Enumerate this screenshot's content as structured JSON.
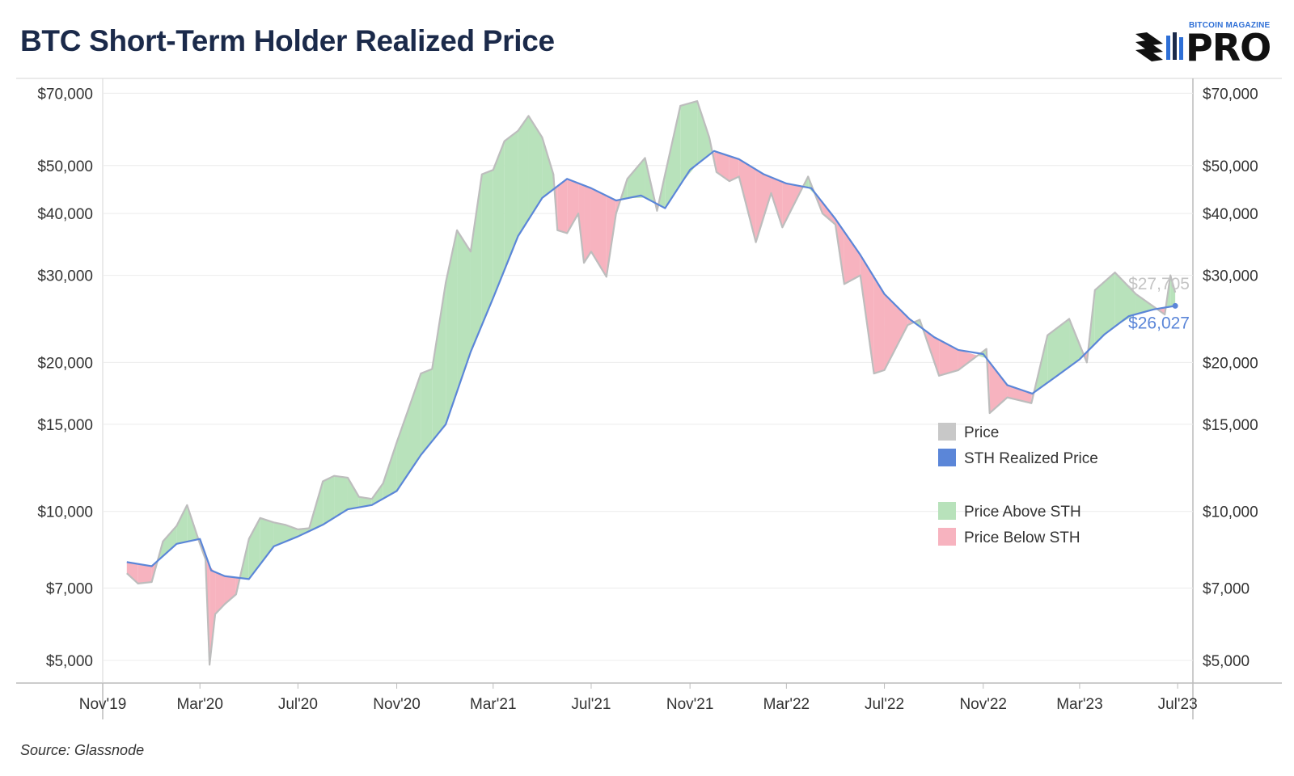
{
  "header": {
    "title": "BTC Short-Term Holder Realized Price",
    "logo_small": "BITCOIN MAGAZINE",
    "logo_big": "PRO"
  },
  "footer": {
    "source": "Source: Glassnode"
  },
  "colors": {
    "price": "#c8c8c8",
    "sth": "#5b86d8",
    "above": "#b8e2bb",
    "below": "#f7b3bf",
    "title": "#1b2a4a"
  },
  "chart_data": {
    "type": "area",
    "title": "BTC Short-Term Holder Realized Price",
    "y_scale": "log",
    "ylim": [
      4500,
      75000
    ],
    "xlim": [
      "2019-11-01",
      "2023-07-20"
    ],
    "y_ticks": [
      5000,
      7000,
      10000,
      15000,
      20000,
      30000,
      40000,
      50000,
      70000
    ],
    "y_tick_labels": [
      "$5,000",
      "$7,000",
      "$10,000",
      "$15,000",
      "$20,000",
      "$30,000",
      "$40,000",
      "$50,000",
      "$70,000"
    ],
    "x_ticks": [
      "2019-11-01",
      "2020-03-01",
      "2020-07-01",
      "2020-11-01",
      "2021-03-01",
      "2021-07-01",
      "2021-11-01",
      "2022-03-01",
      "2022-07-01",
      "2022-11-01",
      "2023-03-01",
      "2023-07-01"
    ],
    "x_tick_labels": [
      "Nov'19",
      "Mar'20",
      "Jul'20",
      "Nov'20",
      "Mar'21",
      "Jul'21",
      "Nov'21",
      "Mar'22",
      "Jul'22",
      "Nov'22",
      "Mar'23",
      "Jul'23"
    ],
    "legend": {
      "placement": "right",
      "items": [
        {
          "label": "Price",
          "color": "#c8c8c8"
        },
        {
          "label": "STH Realized Price",
          "color": "#5b86d8"
        },
        {
          "label": "Price Above STH",
          "color": "#b8e2bb"
        },
        {
          "label": "Price Below STH",
          "color": "#f7b3bf"
        }
      ]
    },
    "end_labels": {
      "price": "$27,705",
      "sth": "$26,027"
    },
    "series": [
      {
        "name": "Price",
        "points": [
          [
            "2019-12-01",
            7500
          ],
          [
            "2019-12-15",
            7150
          ],
          [
            "2020-01-01",
            7200
          ],
          [
            "2020-01-15",
            8700
          ],
          [
            "2020-02-01",
            9350
          ],
          [
            "2020-02-14",
            10300
          ],
          [
            "2020-03-01",
            8600
          ],
          [
            "2020-03-08",
            8000
          ],
          [
            "2020-03-13",
            4900
          ],
          [
            "2020-03-20",
            6200
          ],
          [
            "2020-04-01",
            6500
          ],
          [
            "2020-04-15",
            6800
          ],
          [
            "2020-05-01",
            8800
          ],
          [
            "2020-05-15",
            9700
          ],
          [
            "2020-06-01",
            9500
          ],
          [
            "2020-06-15",
            9400
          ],
          [
            "2020-07-01",
            9200
          ],
          [
            "2020-07-15",
            9250
          ],
          [
            "2020-08-01",
            11500
          ],
          [
            "2020-08-15",
            11800
          ],
          [
            "2020-09-01",
            11700
          ],
          [
            "2020-09-15",
            10700
          ],
          [
            "2020-10-01",
            10600
          ],
          [
            "2020-10-15",
            11400
          ],
          [
            "2020-11-01",
            13800
          ],
          [
            "2020-11-15",
            16000
          ],
          [
            "2020-12-01",
            19000
          ],
          [
            "2020-12-15",
            19400
          ],
          [
            "2021-01-01",
            29000
          ],
          [
            "2021-01-15",
            37000
          ],
          [
            "2021-02-01",
            33500
          ],
          [
            "2021-02-15",
            48000
          ],
          [
            "2021-03-01",
            49000
          ],
          [
            "2021-03-15",
            56000
          ],
          [
            "2021-04-01",
            58800
          ],
          [
            "2021-04-14",
            63000
          ],
          [
            "2021-05-01",
            57000
          ],
          [
            "2021-05-15",
            48000
          ],
          [
            "2021-05-20",
            37000
          ],
          [
            "2021-06-01",
            36500
          ],
          [
            "2021-06-15",
            40000
          ],
          [
            "2021-06-22",
            31800
          ],
          [
            "2021-07-01",
            33500
          ],
          [
            "2021-07-20",
            29800
          ],
          [
            "2021-08-01",
            40000
          ],
          [
            "2021-08-15",
            47000
          ],
          [
            "2021-09-06",
            51800
          ],
          [
            "2021-09-21",
            40500
          ],
          [
            "2021-10-01",
            48000
          ],
          [
            "2021-10-20",
            66000
          ],
          [
            "2021-11-10",
            67500
          ],
          [
            "2021-11-25",
            57000
          ],
          [
            "2021-12-04",
            48500
          ],
          [
            "2021-12-20",
            46500
          ],
          [
            "2022-01-01",
            47500
          ],
          [
            "2022-01-22",
            35000
          ],
          [
            "2022-02-10",
            44000
          ],
          [
            "2022-02-24",
            37500
          ],
          [
            "2022-03-28",
            47500
          ],
          [
            "2022-04-15",
            40000
          ],
          [
            "2022-05-01",
            38000
          ],
          [
            "2022-05-12",
            28800
          ],
          [
            "2022-06-01",
            30000
          ],
          [
            "2022-06-18",
            19000
          ],
          [
            "2022-07-01",
            19300
          ],
          [
            "2022-07-30",
            23800
          ],
          [
            "2022-08-14",
            24400
          ],
          [
            "2022-09-07",
            18800
          ],
          [
            "2022-10-01",
            19300
          ],
          [
            "2022-11-05",
            21300
          ],
          [
            "2022-11-09",
            15800
          ],
          [
            "2022-12-01",
            17000
          ],
          [
            "2022-12-31",
            16550
          ],
          [
            "2023-01-20",
            22700
          ],
          [
            "2023-02-16",
            24500
          ],
          [
            "2023-03-10",
            20000
          ],
          [
            "2023-03-20",
            28000
          ],
          [
            "2023-04-14",
            30400
          ],
          [
            "2023-05-10",
            27500
          ],
          [
            "2023-06-15",
            25000
          ],
          [
            "2023-06-22",
            30000
          ],
          [
            "2023-06-28",
            27705
          ]
        ]
      },
      {
        "name": "STH Realized Price",
        "points": [
          [
            "2019-12-01",
            7900
          ],
          [
            "2020-01-01",
            7750
          ],
          [
            "2020-02-01",
            8600
          ],
          [
            "2020-03-01",
            8800
          ],
          [
            "2020-03-15",
            7600
          ],
          [
            "2020-04-01",
            7400
          ],
          [
            "2020-05-01",
            7300
          ],
          [
            "2020-06-01",
            8500
          ],
          [
            "2020-07-01",
            8900
          ],
          [
            "2020-08-01",
            9400
          ],
          [
            "2020-09-01",
            10100
          ],
          [
            "2020-10-01",
            10300
          ],
          [
            "2020-11-01",
            11000
          ],
          [
            "2020-12-01",
            13000
          ],
          [
            "2021-01-01",
            15000
          ],
          [
            "2021-02-01",
            21000
          ],
          [
            "2021-03-01",
            27000
          ],
          [
            "2021-04-01",
            36000
          ],
          [
            "2021-05-01",
            43000
          ],
          [
            "2021-06-01",
            47000
          ],
          [
            "2021-07-01",
            45000
          ],
          [
            "2021-08-01",
            42500
          ],
          [
            "2021-09-01",
            43500
          ],
          [
            "2021-10-01",
            41000
          ],
          [
            "2021-11-01",
            49000
          ],
          [
            "2021-12-01",
            53500
          ],
          [
            "2022-01-01",
            51500
          ],
          [
            "2022-02-01",
            48000
          ],
          [
            "2022-03-01",
            46000
          ],
          [
            "2022-04-01",
            45000
          ],
          [
            "2022-05-01",
            39000
          ],
          [
            "2022-06-01",
            33000
          ],
          [
            "2022-07-01",
            27500
          ],
          [
            "2022-08-01",
            24500
          ],
          [
            "2022-09-01",
            22500
          ],
          [
            "2022-10-01",
            21200
          ],
          [
            "2022-11-01",
            20800
          ],
          [
            "2022-12-01",
            18000
          ],
          [
            "2023-01-01",
            17300
          ],
          [
            "2023-02-01",
            18800
          ],
          [
            "2023-03-01",
            20300
          ],
          [
            "2023-04-01",
            22800
          ],
          [
            "2023-05-01",
            24800
          ],
          [
            "2023-06-01",
            25600
          ],
          [
            "2023-06-28",
            26027
          ]
        ]
      }
    ]
  }
}
